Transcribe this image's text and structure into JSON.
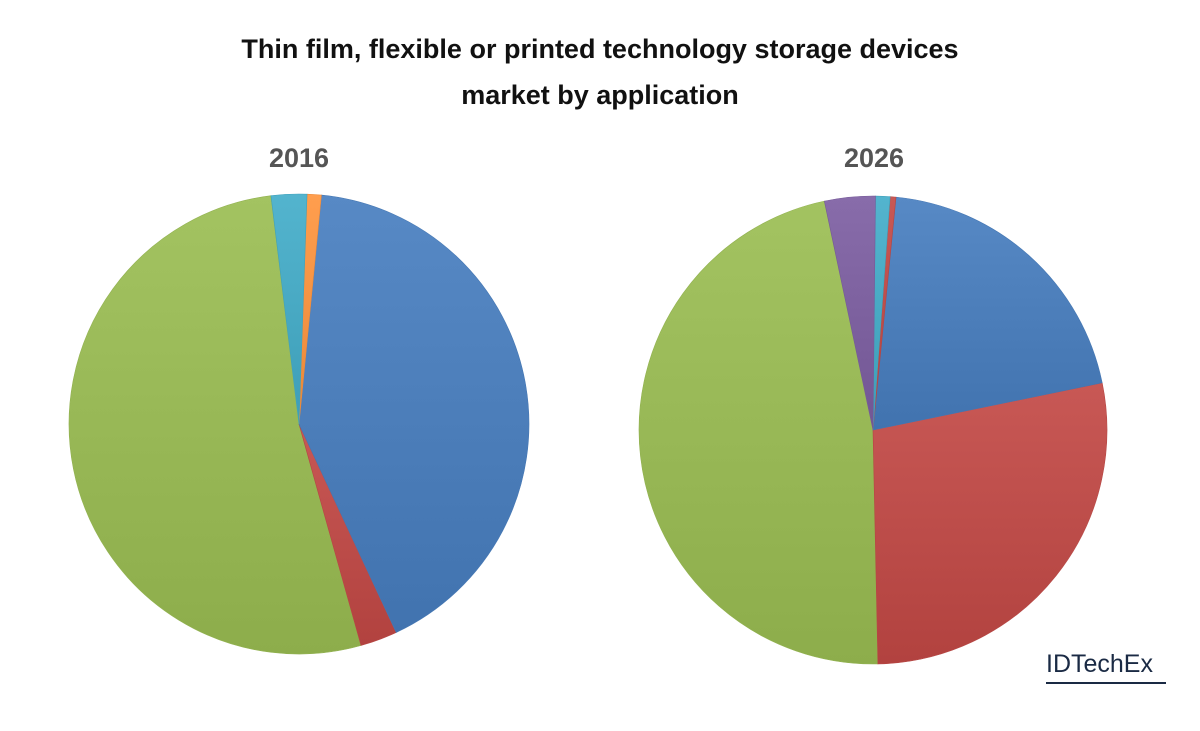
{
  "title_line1": "Thin film, flexible or printed technology storage devices",
  "title_line2": "market by application",
  "brand": "IDTechEx",
  "chart_data": [
    {
      "type": "pie",
      "title": "2016",
      "start_angle_deg": 97,
      "slices": [
        {
          "color": "#9bbb59",
          "value": 52.4
        },
        {
          "color": "#c0504d",
          "value": 2.6
        },
        {
          "color": "#4f81bd",
          "value": 41.5
        },
        {
          "color": "#f79646",
          "value": 1.0
        },
        {
          "color": "#4bacc6",
          "value": 2.5
        }
      ]
    },
    {
      "type": "pie",
      "title": "2026",
      "start_angle_deg": 102,
      "slices": [
        {
          "color": "#9bbb59",
          "value": 47.0
        },
        {
          "color": "#c0504d",
          "value": 27.9
        },
        {
          "color": "#4f81bd",
          "value": 20.2
        },
        {
          "color": "#c0504d",
          "value": 0.4
        },
        {
          "color": "#4bacc6",
          "value": 1.0
        },
        {
          "color": "#8064a2",
          "value": 3.5
        }
      ]
    }
  ]
}
